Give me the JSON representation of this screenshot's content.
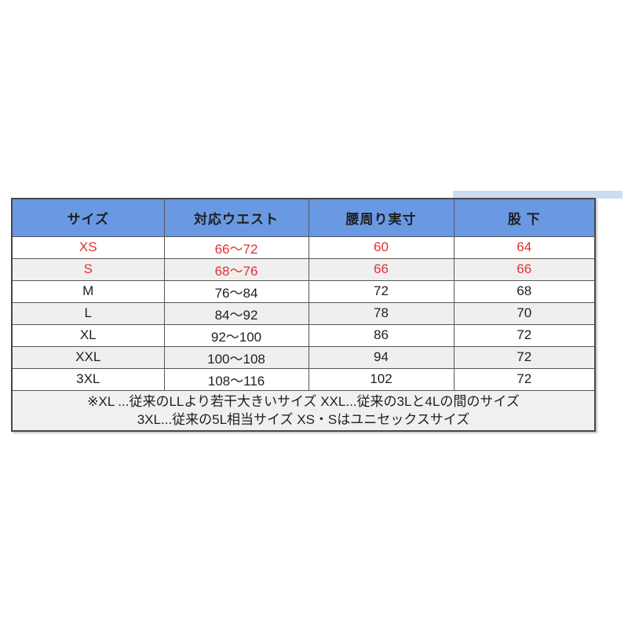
{
  "colors": {
    "page_bg": "#ffffff",
    "header_bg": "#6a99e4",
    "header_text": "#ffffff",
    "header_underline_band": "#b3b3b3",
    "stripe_row_bg": "#efefef",
    "note_row_bg": "#f0f0f0",
    "body_text": "#1f1f1f",
    "highlight_text": "#e62f33",
    "border": "#565656",
    "cropped_fragment_bg": "#cddcf2"
  },
  "chart_data": {
    "type": "table",
    "columns": [
      "サイズ",
      "対応ウエスト",
      "腰周り実寸",
      "股 下"
    ],
    "rows": [
      [
        "XS",
        "66〜72",
        "60",
        "64"
      ],
      [
        "S",
        "68〜76",
        "66",
        "66"
      ],
      [
        "M",
        "76〜84",
        "72",
        "68"
      ],
      [
        "L",
        "84〜92",
        "78",
        "70"
      ],
      [
        "XL",
        "92〜100",
        "86",
        "72"
      ],
      [
        "XXL",
        "100〜108",
        "94",
        "72"
      ],
      [
        "3XL",
        "108〜116",
        "102",
        "72"
      ]
    ],
    "highlight_rows": [
      0,
      1
    ],
    "annotations": [
      "※XL ...従来のLLより若干大きいサイズ XXL...従来の3Lと4Lの間のサイズ",
      "3XL...従来の5L相当サイズ XS・Sはユニセックスサイズ"
    ]
  }
}
